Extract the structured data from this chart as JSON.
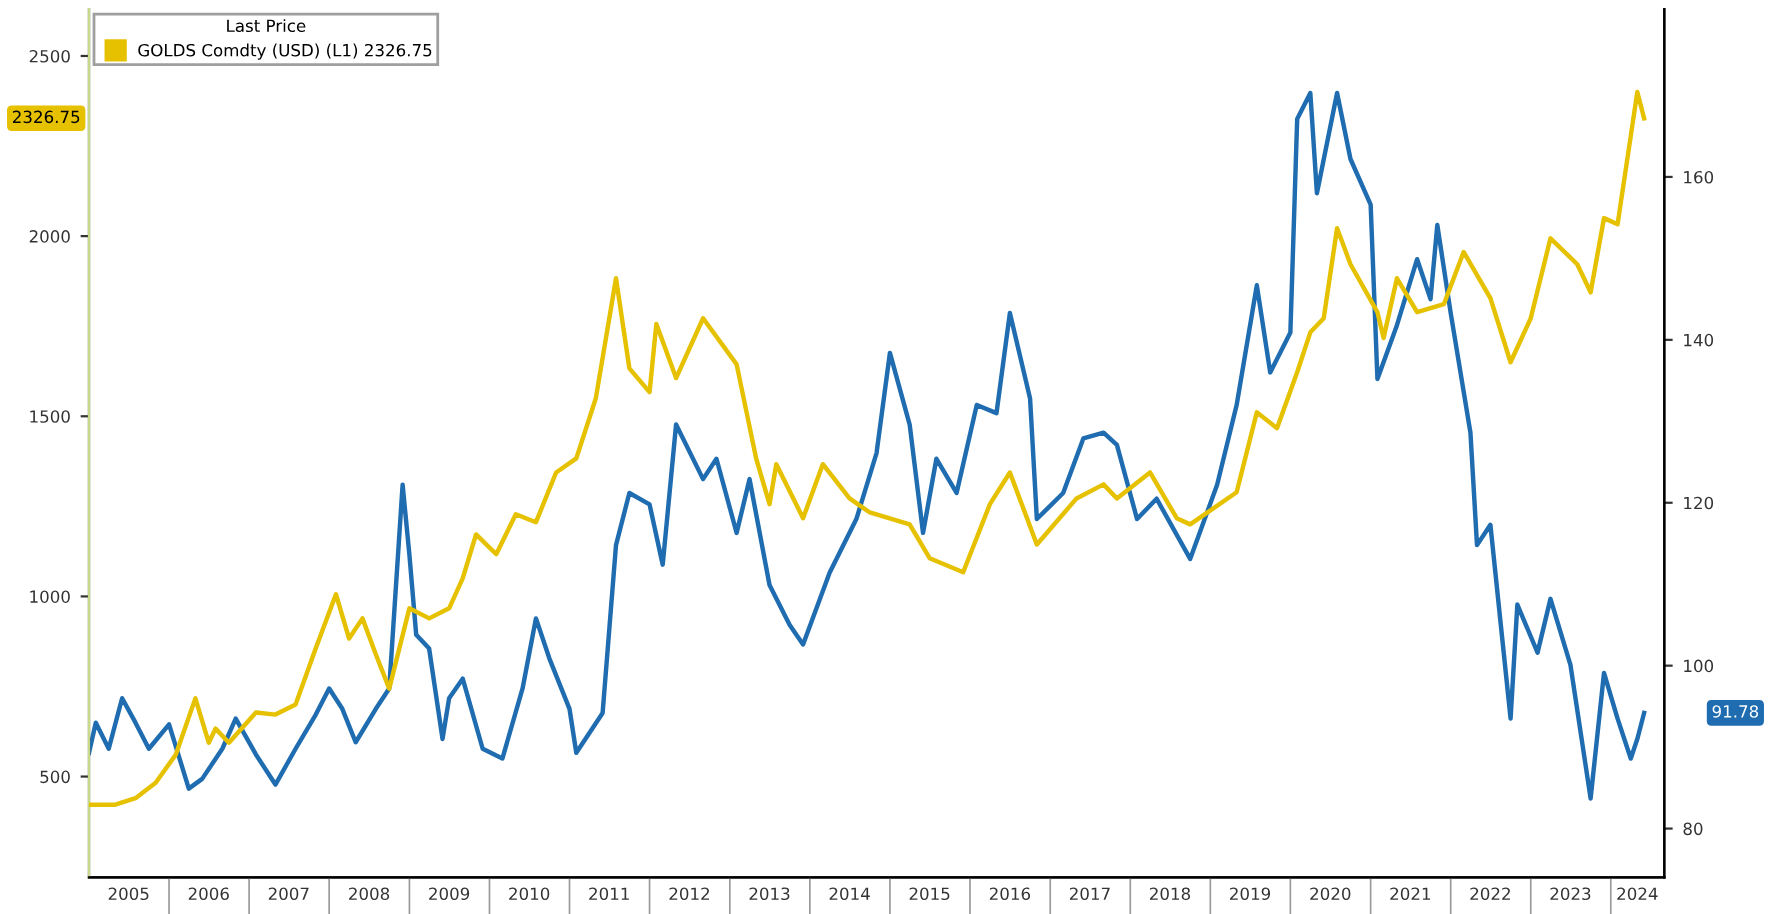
{
  "chart_data": {
    "type": "line",
    "legend_title": "Last Price",
    "legend": "top left",
    "grid": false,
    "xlim": [
      "2005-01",
      "2024-09"
    ],
    "xticks": [
      {
        "value": "2005-07",
        "label": "2005"
      },
      {
        "value": "2006-07",
        "label": "2006"
      },
      {
        "value": "2007-07",
        "label": "2007"
      },
      {
        "value": "2008-07",
        "label": "2008"
      },
      {
        "value": "2009-07",
        "label": "2009"
      },
      {
        "value": "2010-07",
        "label": "2010"
      },
      {
        "value": "2011-07",
        "label": "2011"
      },
      {
        "value": "2012-07",
        "label": "2012"
      },
      {
        "value": "2013-07",
        "label": "2013"
      },
      {
        "value": "2014-07",
        "label": "2014"
      },
      {
        "value": "2015-07",
        "label": "2015"
      },
      {
        "value": "2016-07",
        "label": "2016"
      },
      {
        "value": "2017-07",
        "label": "2017"
      },
      {
        "value": "2018-07",
        "label": "2018"
      },
      {
        "value": "2019-07",
        "label": "2019"
      },
      {
        "value": "2020-07",
        "label": "2020"
      },
      {
        "value": "2021-07",
        "label": "2021"
      },
      {
        "value": "2022-07",
        "label": "2022"
      },
      {
        "value": "2023-07",
        "label": "2023"
      },
      {
        "value": "2024-05",
        "label": "2024"
      }
    ],
    "ylim": [
      220,
      2630
    ],
    "yticks": [
      500,
      1000,
      1500,
      2000,
      2500
    ],
    "y2lim": [
      74,
      180.6
    ],
    "y2ticks": [
      80,
      100,
      120,
      140,
      160
    ],
    "series": [
      {
        "name": "GOLDS Comdty (USD) (L1) 2326.75",
        "color": "#e6c100",
        "axis": "y",
        "x": [
          "2005-01",
          "2005-05",
          "2005-08",
          "2005-11",
          "2006-02",
          "2006-05",
          "2006-07",
          "2006-08",
          "2006-10",
          "2007-02",
          "2007-05",
          "2007-08",
          "2007-11",
          "2008-02",
          "2008-04",
          "2008-06",
          "2008-08",
          "2008-10",
          "2009-01",
          "2009-04",
          "2009-07",
          "2009-09",
          "2009-11",
          "2010-02",
          "2010-05",
          "2010-08",
          "2010-11",
          "2011-02",
          "2011-05",
          "2011-08",
          "2011-10",
          "2012-01",
          "2012-02",
          "2012-05",
          "2012-09",
          "2013-02",
          "2013-05",
          "2013-07",
          "2013-08",
          "2013-12",
          "2014-03",
          "2014-07",
          "2014-10",
          "2015-04",
          "2015-07",
          "2015-12",
          "2016-04",
          "2016-07",
          "2016-11",
          "2017-05",
          "2017-09",
          "2017-11",
          "2018-04",
          "2018-08",
          "2018-10",
          "2019-05",
          "2019-08",
          "2019-11",
          "2020-02",
          "2020-04",
          "2020-06",
          "2020-08",
          "2020-10",
          "2021-02",
          "2021-03",
          "2021-05",
          "2021-08",
          "2021-12",
          "2022-03",
          "2022-07",
          "2022-10",
          "2023-01",
          "2023-04",
          "2023-08",
          "2023-10",
          "2023-12",
          "2024-02",
          "2024-05",
          "2024-06"
        ],
        "values": [
          422,
          422,
          440,
          483,
          561,
          717,
          594,
          633,
          594,
          678,
          672,
          700,
          856,
          1006,
          883,
          939,
          839,
          744,
          967,
          939,
          967,
          1050,
          1172,
          1117,
          1228,
          1206,
          1344,
          1383,
          1550,
          1883,
          1633,
          1567,
          1756,
          1606,
          1772,
          1644,
          1383,
          1256,
          1367,
          1217,
          1367,
          1272,
          1233,
          1200,
          1106,
          1067,
          1256,
          1344,
          1144,
          1272,
          1311,
          1272,
          1344,
          1217,
          1200,
          1289,
          1511,
          1467,
          1622,
          1733,
          1772,
          2022,
          1922,
          1789,
          1717,
          1883,
          1789,
          1811,
          1956,
          1828,
          1650,
          1772,
          1994,
          1922,
          1844,
          2050,
          2033,
          2400,
          2327
        ]
      },
      {
        "color": "#1f6db0",
        "axis": "y2",
        "x": [
          "2005-01",
          "2005-02",
          "2005-04",
          "2005-06",
          "2005-08",
          "2005-10",
          "2006-01",
          "2006-04",
          "2006-06",
          "2006-09",
          "2006-11",
          "2007-02",
          "2007-05",
          "2007-08",
          "2007-11",
          "2008-01",
          "2008-03",
          "2008-05",
          "2008-08",
          "2008-10",
          "2008-12",
          "2009-01",
          "2009-02",
          "2009-04",
          "2009-06",
          "2009-07",
          "2009-09",
          "2009-12",
          "2010-03",
          "2010-06",
          "2010-08",
          "2010-10",
          "2011-01",
          "2011-02",
          "2011-06",
          "2011-08",
          "2011-10",
          "2012-01",
          "2012-03",
          "2012-05",
          "2012-09",
          "2012-11",
          "2013-02",
          "2013-04",
          "2013-07",
          "2013-10",
          "2013-12",
          "2014-04",
          "2014-08",
          "2014-11",
          "2015-01",
          "2015-04",
          "2015-06",
          "2015-08",
          "2015-11",
          "2016-02",
          "2016-05",
          "2016-07",
          "2016-10",
          "2016-11",
          "2017-03",
          "2017-06",
          "2017-09",
          "2017-11",
          "2018-02",
          "2018-05",
          "2018-10",
          "2019-02",
          "2019-05",
          "2019-08",
          "2019-10",
          "2020-01",
          "2020-02",
          "2020-04",
          "2020-05",
          "2020-08",
          "2020-10",
          "2021-01",
          "2021-02",
          "2021-05",
          "2021-08",
          "2021-10",
          "2021-11",
          "2022-01",
          "2022-04",
          "2022-05",
          "2022-07",
          "2022-10",
          "2022-11",
          "2023-02",
          "2023-04",
          "2023-07",
          "2023-10",
          "2023-12",
          "2024-02",
          "2024-04",
          "2024-05",
          "2024-06"
        ],
        "values": [
          89.3,
          93.0,
          89.8,
          96.0,
          93.0,
          89.8,
          92.8,
          84.9,
          86.1,
          89.8,
          93.5,
          89.1,
          85.4,
          89.8,
          94.0,
          97.2,
          94.7,
          90.6,
          94.7,
          97.2,
          122.2,
          113.6,
          103.8,
          102.1,
          91.0,
          96.0,
          98.4,
          89.8,
          88.6,
          97.2,
          105.8,
          100.9,
          94.7,
          89.3,
          94.2,
          114.8,
          121.2,
          119.8,
          112.4,
          129.6,
          122.9,
          125.4,
          116.3,
          122.9,
          109.9,
          105.0,
          102.6,
          111.4,
          118.0,
          126.1,
          138.4,
          129.6,
          116.3,
          125.4,
          121.2,
          132.0,
          131.0,
          143.3,
          132.8,
          118.0,
          121.2,
          127.9,
          128.6,
          127.1,
          118.0,
          120.5,
          113.1,
          122.2,
          132.0,
          146.7,
          136.0,
          140.9,
          167.1,
          170.3,
          158.0,
          170.3,
          162.2,
          156.6,
          135.2,
          141.8,
          149.9,
          145.0,
          154.1,
          143.3,
          128.6,
          114.8,
          117.3,
          93.5,
          107.5,
          101.6,
          108.2,
          100.1,
          83.7,
          99.1,
          93.5,
          88.6,
          91.0,
          94.2
        ]
      }
    ],
    "annotations": [
      "2326.75",
      "91.78"
    ]
  }
}
